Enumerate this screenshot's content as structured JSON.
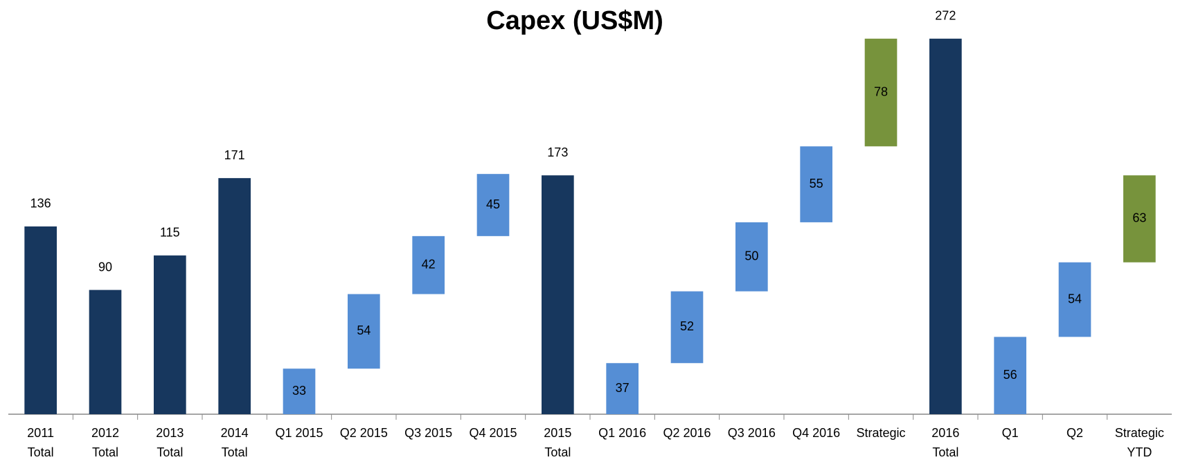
{
  "chart_data": {
    "type": "waterfall",
    "title": "Capex (US$M)",
    "categories": [
      [
        "2011",
        "Total"
      ],
      [
        "2012",
        "Total"
      ],
      [
        "2013",
        "Total"
      ],
      [
        "2014",
        "Total"
      ],
      [
        "Q1 2015"
      ],
      [
        "Q2 2015"
      ],
      [
        "Q3 2015"
      ],
      [
        "Q4 2015"
      ],
      [
        "2015",
        "Total"
      ],
      [
        "Q1 2016"
      ],
      [
        "Q2 2016"
      ],
      [
        "Q3 2016"
      ],
      [
        "Q4 2016"
      ],
      [
        "Strategic"
      ],
      [
        "2016",
        "Total"
      ],
      [
        "Q1"
      ],
      [
        "Q2"
      ],
      [
        "Strategic",
        "YTD"
      ]
    ],
    "values": [
      136,
      90,
      115,
      171,
      33,
      54,
      42,
      45,
      173,
      37,
      52,
      50,
      55,
      78,
      272,
      56,
      54,
      63
    ],
    "kinds": [
      "total",
      "total",
      "total",
      "total",
      "step",
      "step",
      "step",
      "step",
      "total",
      "step",
      "step",
      "step",
      "step",
      "strategic",
      "total",
      "step",
      "step",
      "strategic"
    ],
    "colors": {
      "total": "#17375e",
      "step": "#558ed5",
      "strategic": "#77933c"
    },
    "ylim": [
      0,
      300
    ]
  }
}
